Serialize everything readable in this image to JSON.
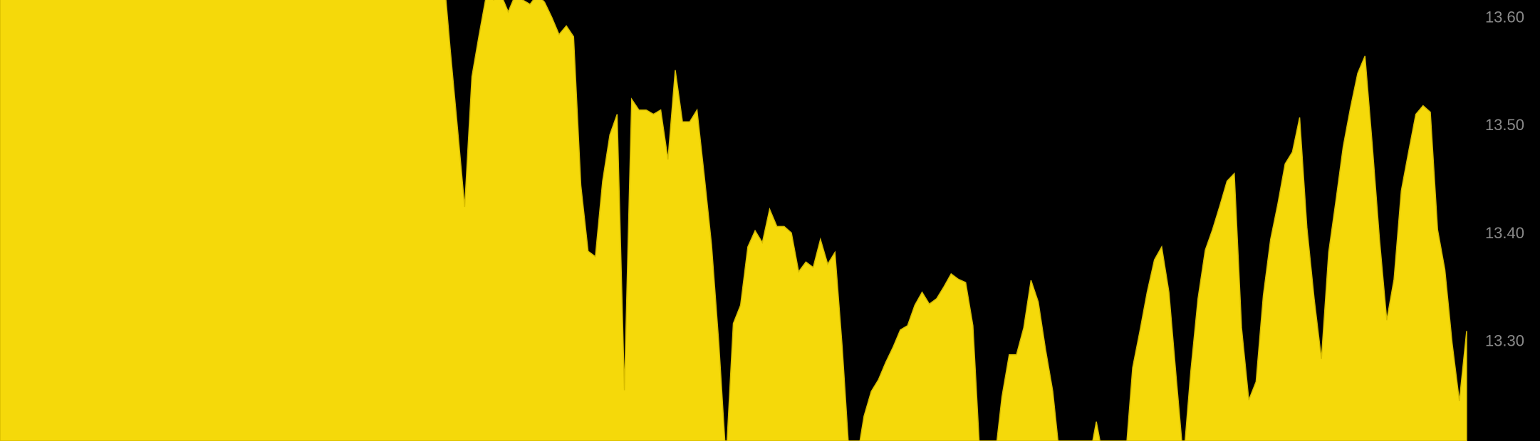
{
  "chart_data": {
    "type": "area",
    "color": "#f5d90a",
    "ylim": [
      13.208,
      13.617
    ],
    "yticks": [
      {
        "value": 13.6,
        "label": "13.60"
      },
      {
        "value": 13.5,
        "label": "13.50"
      },
      {
        "value": 13.4,
        "label": "13.40"
      },
      {
        "value": 13.3,
        "label": "13.30"
      }
    ],
    "values": [
      13.65,
      13.65,
      13.65,
      13.65,
      13.65,
      13.65,
      13.65,
      13.65,
      13.65,
      13.65,
      13.65,
      13.65,
      13.65,
      13.65,
      13.65,
      13.65,
      13.65,
      13.65,
      13.65,
      13.65,
      13.65,
      13.65,
      13.65,
      13.65,
      13.65,
      13.65,
      13.65,
      13.65,
      13.65,
      13.65,
      13.65,
      13.65,
      13.65,
      13.65,
      13.65,
      13.65,
      13.65,
      13.65,
      13.65,
      13.65,
      13.65,
      13.65,
      13.65,
      13.65,
      13.65,
      13.65,
      13.65,
      13.65,
      13.65,
      13.65,
      13.65,
      13.65,
      13.65,
      13.65,
      13.65,
      13.65,
      13.65,
      13.65,
      13.65,
      13.65,
      13.65,
      13.65,
      13.572,
      13.499,
      13.425,
      13.546,
      13.585,
      13.622,
      13.617,
      13.622,
      13.606,
      13.622,
      13.617,
      13.613,
      13.622,
      13.615,
      13.601,
      13.585,
      13.593,
      13.583,
      13.445,
      13.384,
      13.379,
      13.449,
      13.492,
      13.511,
      13.255,
      13.525,
      13.515,
      13.515,
      13.511,
      13.515,
      13.469,
      13.552,
      13.504,
      13.504,
      13.515,
      13.454,
      13.39,
      13.299,
      13.19,
      13.317,
      13.334,
      13.388,
      13.403,
      13.392,
      13.423,
      13.407,
      13.407,
      13.401,
      13.365,
      13.374,
      13.369,
      13.395,
      13.372,
      13.383,
      13.295,
      13.19,
      13.19,
      13.231,
      13.254,
      13.265,
      13.281,
      13.295,
      13.311,
      13.315,
      13.334,
      13.346,
      13.335,
      13.34,
      13.351,
      13.363,
      13.358,
      13.355,
      13.315,
      13.19,
      13.19,
      13.19,
      13.249,
      13.288,
      13.288,
      13.313,
      13.357,
      13.337,
      13.293,
      13.254,
      13.19,
      13.19,
      13.19,
      13.19,
      13.19,
      13.226,
      13.19,
      13.19,
      13.19,
      13.19,
      13.276,
      13.31,
      13.346,
      13.376,
      13.388,
      13.346,
      13.267,
      13.19,
      13.272,
      13.34,
      13.385,
      13.404,
      13.426,
      13.449,
      13.456,
      13.313,
      13.246,
      13.263,
      13.343,
      13.395,
      13.428,
      13.465,
      13.476,
      13.508,
      13.406,
      13.34,
      13.284,
      13.383,
      13.431,
      13.481,
      13.517,
      13.549,
      13.565,
      13.483,
      13.395,
      13.32,
      13.358,
      13.44,
      13.476,
      13.511,
      13.519,
      13.513,
      13.404,
      13.367,
      13.299,
      13.245,
      13.31
    ]
  }
}
